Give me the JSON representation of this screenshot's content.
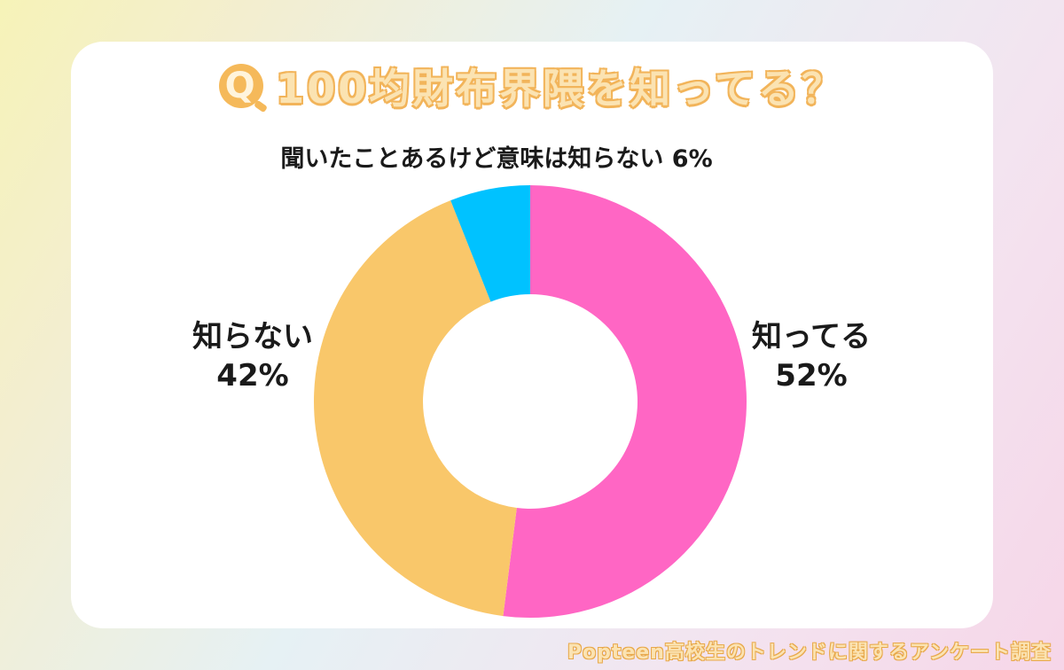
{
  "title": {
    "q_mark": "Q",
    "text": "100均財布界隈を知ってる？"
  },
  "footer": "Popteen高校生のトレンドに関するアンケート調査",
  "colors": {
    "know": "#ff66c4",
    "dont_know": "#f9c76a",
    "heard": "#00c2ff",
    "title_fill": "#fbe3b2",
    "title_outline": "#f2b45a"
  },
  "chart_data": {
    "type": "pie",
    "style": "donut",
    "slices": [
      {
        "label": "知ってる",
        "value": 52,
        "value_label": "52%",
        "color": "#ff66c4"
      },
      {
        "label": "知らない",
        "value": 42,
        "value_label": "42%",
        "color": "#f9c76a"
      },
      {
        "label": "聞いたことあるけど意味は知らない",
        "value": 6,
        "value_label": "6%",
        "color": "#00c2ff"
      }
    ]
  }
}
